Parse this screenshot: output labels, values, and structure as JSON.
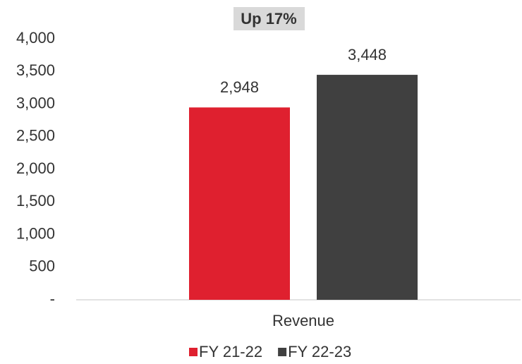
{
  "chart_data": {
    "type": "bar",
    "annotation": "Up 17%",
    "categories": [
      "Revenue"
    ],
    "series": [
      {
        "name": "FY 21-22",
        "color": "#df202f",
        "values": [
          2948
        ],
        "value_labels": [
          "2,948"
        ]
      },
      {
        "name": "FY 22-23",
        "color": "#404040",
        "values": [
          3448
        ],
        "value_labels": [
          "3,448"
        ]
      }
    ],
    "ylim": [
      0,
      4000
    ],
    "yticks": [
      {
        "value": 0,
        "label": "-"
      },
      500,
      {
        "value": 1000,
        "label": "1,000"
      },
      {
        "value": 1500,
        "label": "1,500"
      },
      {
        "value": 2000,
        "label": "2,000"
      },
      {
        "value": 2500,
        "label": "2,500"
      },
      {
        "value": 3000,
        "label": "3,000"
      },
      {
        "value": 3500,
        "label": "3,500"
      },
      {
        "value": 4000,
        "label": "4,000"
      }
    ],
    "grid": false,
    "legend": "bottom"
  }
}
